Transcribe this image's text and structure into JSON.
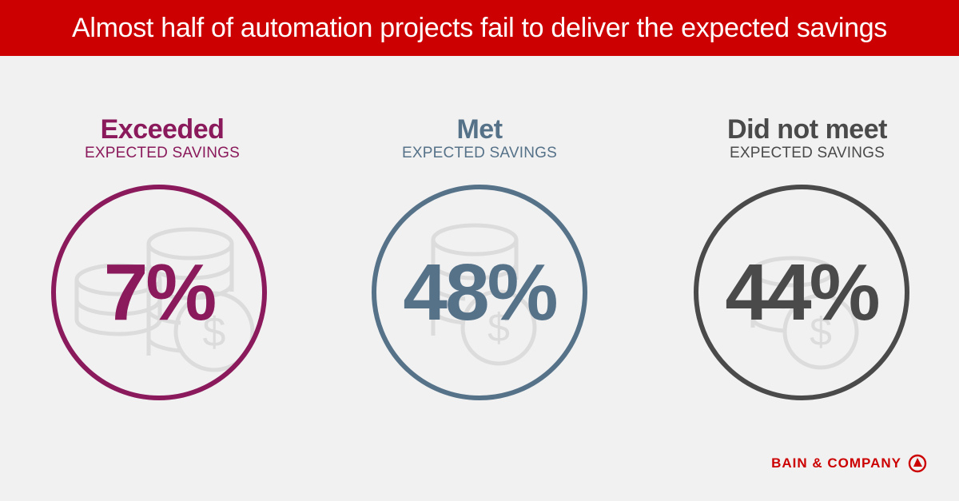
{
  "header": {
    "title": "Almost half of automation projects fail to deliver the expected savings"
  },
  "colors": {
    "banner": "#cc0000",
    "exceeded": "#8a1a5b",
    "met": "#567289",
    "did_not_meet": "#4a4a4a",
    "coin_icon": "#dcdcdc"
  },
  "stats": [
    {
      "label": "Exceeded",
      "sublabel": "EXPECTED SAVINGS",
      "value": "7%",
      "percent": 7,
      "color": "#8a1a5b"
    },
    {
      "label": "Met",
      "sublabel": "EXPECTED SAVINGS",
      "value": "48%",
      "percent": 48,
      "color": "#567289"
    },
    {
      "label": "Did not meet",
      "sublabel": "EXPECTED SAVINGS",
      "value": "44%",
      "percent": 44,
      "color": "#4a4a4a"
    }
  ],
  "brand": {
    "name": "BAIN & COMPANY",
    "icon": "bain-logo-icon"
  }
}
